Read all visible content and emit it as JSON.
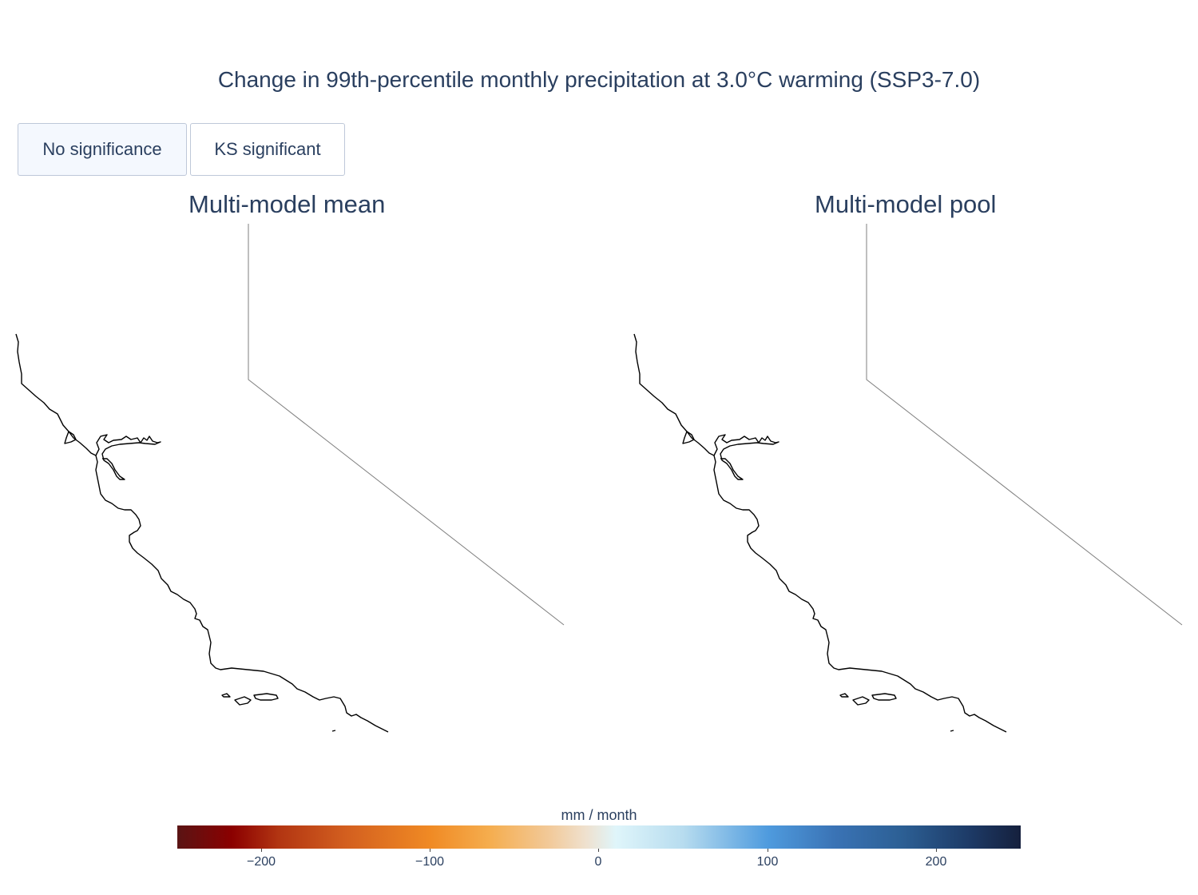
{
  "title": "Change in 99th-percentile monthly precipitation at 3.0°C warming (SSP3-7.0)",
  "buttons": [
    {
      "label": "No significance",
      "active": true
    },
    {
      "label": "KS significant",
      "active": false
    }
  ],
  "panels": [
    {
      "title": "Multi-model mean"
    },
    {
      "title": "Multi-model pool"
    }
  ],
  "colorbar": {
    "title": "mm / month",
    "ticks": [
      "−200",
      "−100",
      "0",
      "100",
      "200"
    ],
    "range": [
      -250,
      250
    ],
    "colors": [
      "#5a1414",
      "#8b0000",
      "#f08a24",
      "#efe1cf",
      "#dff5fa",
      "#4f9bde",
      "#15203d"
    ]
  },
  "map": {
    "region": "California coast",
    "coastline_color": "#000000",
    "boundary_color": "#7f7f7f"
  }
}
